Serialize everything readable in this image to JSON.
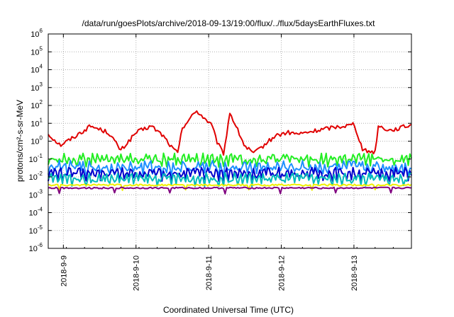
{
  "chart_data": {
    "type": "line",
    "title": "/data/run/goesPlots/archive/2018-09-13/19:00/flux/../flux/5daysEarthFluxes.txt",
    "xlabel": "Coordinated Universal Time (UTC)",
    "ylabel": "protons/cm²-s-sr-MeV",
    "yscale": "log",
    "ylim": [
      1e-06,
      1000000.0
    ],
    "xlim_days": [
      "2018-09-08 19:00",
      "2018-09-13 19:00"
    ],
    "y_ticks": [
      "10^-6",
      "10^-5",
      "10^-4",
      "10^-3",
      "10^-2",
      "10^-1",
      "10^0",
      "10^1",
      "10^2",
      "10^3",
      "10^4",
      "10^5",
      "10^6"
    ],
    "x_ticks": [
      "2018-9-9",
      "2018-9-10",
      "2018-9-11",
      "2018-9-12",
      "2018-9-13"
    ],
    "grid": true,
    "series": [
      {
        "color": "#e00000",
        "x": [
          "2018-09-08 19:00",
          "2018-09-08 23:00",
          "2018-09-09 03:00",
          "2018-09-09 09:00",
          "2018-09-09 15:00",
          "2018-09-09 19:00",
          "2018-09-10 00:00",
          "2018-09-10 05:00",
          "2018-09-10 09:00",
          "2018-09-10 12:00",
          "2018-09-10 14:00",
          "2018-09-10 15:00",
          "2018-09-10 20:00",
          "2018-09-11 01:00",
          "2018-09-11 03:00",
          "2018-09-11 05:00",
          "2018-09-11 07:00",
          "2018-09-11 12:00",
          "2018-09-11 15:00",
          "2018-09-11 22:00",
          "2018-09-12 02:00",
          "2018-09-12 06:00",
          "2018-09-12 12:00",
          "2018-09-12 17:00",
          "2018-09-12 23:00",
          "2018-09-13 00:00",
          "2018-09-13 03:00",
          "2018-09-13 07:00",
          "2018-09-13 08:00",
          "2018-09-13 12:00",
          "2018-09-13 19:00"
        ],
        "values": [
          2.5,
          0.6,
          1.5,
          7,
          3,
          0.3,
          3,
          7,
          2,
          0.4,
          0.2,
          5,
          50,
          8,
          0.7,
          0.2,
          40,
          0.5,
          0.2,
          2,
          3,
          2.5,
          4,
          6,
          8,
          10,
          0.3,
          0.25,
          7,
          4,
          8
        ]
      },
      {
        "color": "#22ee22",
        "x": [
          "2018-09-08 19:00",
          "2018-09-13 19:00"
        ],
        "values": [
          0.1,
          0.1
        ]
      },
      {
        "color": "#1e90ff",
        "x": [
          "2018-09-08 19:00",
          "2018-09-13 19:00"
        ],
        "values": [
          0.035,
          0.035
        ]
      },
      {
        "color": "#0000cc",
        "x": [
          "2018-09-08 19:00",
          "2018-09-13 19:00"
        ],
        "values": [
          0.016,
          0.016
        ]
      },
      {
        "color": "#00bbbb",
        "x": [
          "2018-09-08 19:00",
          "2018-09-13 19:00"
        ],
        "values": [
          0.008,
          0.008
        ]
      },
      {
        "color": "#eeee00",
        "x": [
          "2018-09-08 19:00",
          "2018-09-13 19:00"
        ],
        "values": [
          0.0035,
          0.0035
        ]
      },
      {
        "color": "#800080",
        "x": [
          "2018-09-08 19:00",
          "2018-09-13 19:00"
        ],
        "values": [
          0.0024,
          0.0024
        ]
      }
    ]
  }
}
